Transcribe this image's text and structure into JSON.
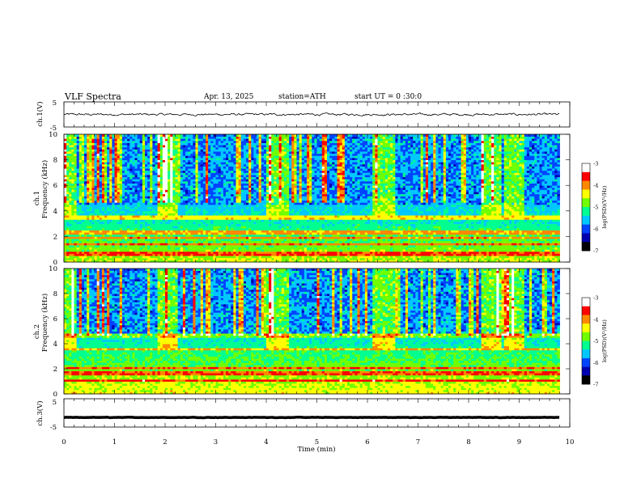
{
  "header": {
    "title": "VLF Spectra",
    "date": "Apr. 13, 2025",
    "station": "station=ATH",
    "start": "start UT =  0 :30:0"
  },
  "xaxis": {
    "label": "Time (min)",
    "ticks": [
      "0",
      "1",
      "2",
      "3",
      "4",
      "5",
      "6",
      "7",
      "8",
      "9",
      "10"
    ],
    "range": [
      0,
      10
    ]
  },
  "colorbar": {
    "label": "log(PSD)(V²/Hz)",
    "ticks": [
      "-3",
      "-4",
      "-5",
      "-6",
      "-7"
    ],
    "range": [
      -7,
      -3
    ],
    "colors": [
      "#000000",
      "#0000b0",
      "#0044ff",
      "#00c8ff",
      "#00ff90",
      "#70ff00",
      "#ffff00",
      "#ff8800",
      "#ff0000",
      "#ffffff"
    ]
  },
  "chart_data": [
    {
      "type": "line",
      "name": "ch1",
      "ylabel": "ch.1(V)",
      "yticks": [
        "5",
        "-5"
      ],
      "ylim": [
        -5,
        5
      ],
      "x_range_min": [
        0,
        9.8
      ],
      "mean_value": 0,
      "noise_amplitude": 0.3
    },
    {
      "type": "heatmap",
      "name": "ch1-spectrogram",
      "ylabel_line1": "ch.1",
      "ylabel_line2": "Frequency (kHz)",
      "yticks": [
        "0",
        "2",
        "4",
        "6",
        "8",
        "10"
      ],
      "ylim": [
        0,
        10
      ],
      "x_range_min": [
        0,
        9.8
      ],
      "bursts_min": [
        [
          0.0,
          0.2
        ],
        [
          1.85,
          2.2
        ],
        [
          4.0,
          4.4
        ],
        [
          6.1,
          6.5
        ],
        [
          8.25,
          8.6
        ],
        [
          8.7,
          9.05
        ]
      ],
      "bands_khz": [
        3.4,
        2.2,
        1.8,
        1.3,
        0.6
      ]
    },
    {
      "type": "heatmap",
      "name": "ch2-spectrogram",
      "ylabel_line1": "ch.2",
      "ylabel_line2": "Frequency (kHz)",
      "yticks": [
        "0",
        "2",
        "4",
        "6",
        "8",
        "10"
      ],
      "ylim": [
        0,
        10
      ],
      "x_range_min": [
        0,
        9.8
      ],
      "bursts_min": [
        [
          0.0,
          0.2
        ],
        [
          1.85,
          2.2
        ],
        [
          4.0,
          4.4
        ],
        [
          6.1,
          6.5
        ],
        [
          8.25,
          8.6
        ],
        [
          8.7,
          9.05
        ]
      ],
      "bands_khz": [
        4.6,
        3.5,
        2.0,
        1.6,
        1.0
      ]
    },
    {
      "type": "line",
      "name": "ch3",
      "ylabel": "ch.3(V)",
      "yticks": [
        "5",
        "-5"
      ],
      "ylim": [
        -5,
        5
      ],
      "x_range_min": [
        0,
        9.8
      ],
      "mean_value": -1.6,
      "noise_amplitude": 0.05
    }
  ]
}
